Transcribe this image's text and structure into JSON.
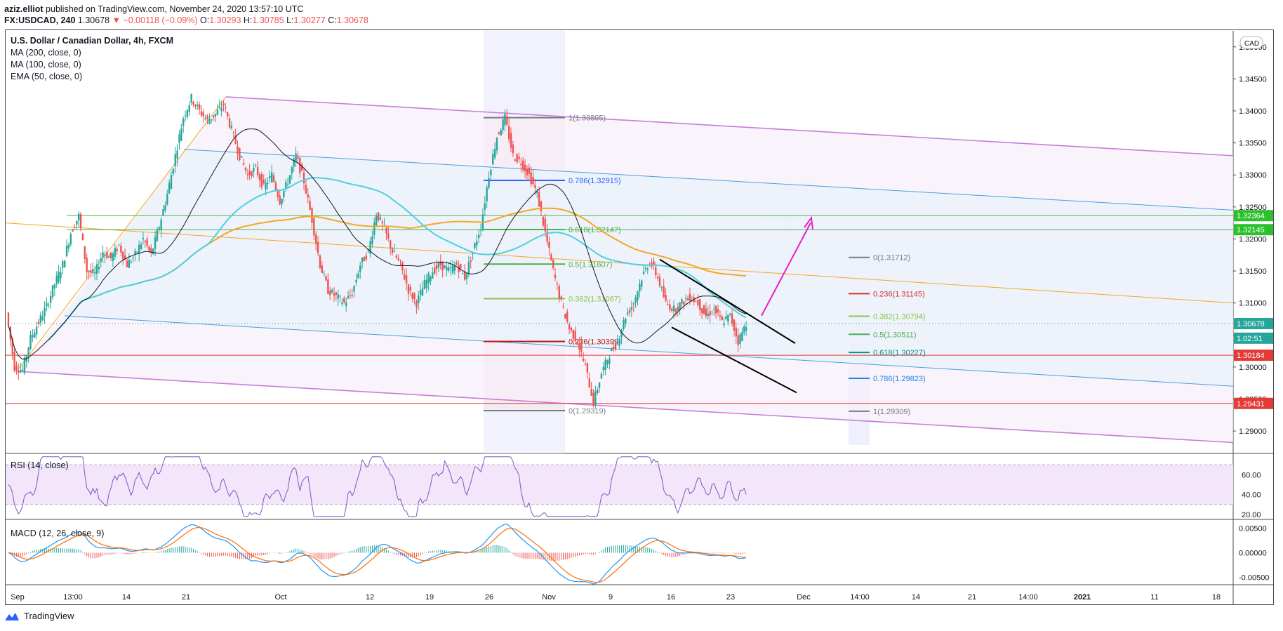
{
  "header": {
    "user": "aziz.elliot",
    "published": " published on TradingView.com, November 24, 2020 13:57:10 UTC",
    "symbol": "FX:USDCAD, 240",
    "last": "1.30678",
    "change": "−0.00118 (−0.09%)",
    "o_label": "O:",
    "o": "1.30293",
    "h_label": "H:",
    "h": "1.30785",
    "l_label": "L:",
    "l": "1.30277",
    "c_label": "C:",
    "c": "1.30678"
  },
  "legend": {
    "title": "U.S. Dollar / Canadian Dollar, 4h, FXCM",
    "ma200": "MA (200, close, 0)",
    "ma100": "MA (100, close, 0)",
    "ema50": "EMA (50, close, 0)",
    "rsi": "RSI (14, close)",
    "macd": "MACD (12, 26, close, 9)"
  },
  "watermark": {
    "symbol": "USDCAD, 4h",
    "name": "U.S. Dollar / Canadian Dollar"
  },
  "currency_button": "CAD",
  "footer": {
    "brand": "TradingView"
  },
  "colors": {
    "up": "#26a69a",
    "down": "#ef5350",
    "ma200": "#f5a623",
    "ma100": "#4dd0e1",
    "ema50": "#131722",
    "channel": "#c77dd8",
    "inner_channel": "#4a9fe0",
    "horizontal": "#e53935",
    "green_line": "#4caf50",
    "arrow": "#e91ec8",
    "wedge": "#000000"
  },
  "chart_data": {
    "type": "candlestick",
    "price_axis": {
      "ylim": [
        1.2865,
        1.3525
      ],
      "ticks": [
        "1.29000",
        "1.29500",
        "1.30000",
        "1.30500",
        "1.31000",
        "1.31500",
        "1.32000",
        "1.32500",
        "1.33000",
        "1.33500",
        "1.34000",
        "1.34500",
        "1.35000"
      ]
    },
    "time_axis_ticks": [
      "Sep",
      "13:00",
      "14",
      "21",
      "Oct",
      "12",
      "19",
      "26",
      "Nov",
      "9",
      "16",
      "23",
      "Dec",
      "14:00",
      "14",
      "21",
      "14:00",
      "2021",
      "11",
      "18"
    ],
    "price_labels": [
      {
        "value": "1.32364",
        "price": 1.32364,
        "color": "#2bc12b"
      },
      {
        "value": "1.32145",
        "price": 1.32145,
        "color": "#2bc12b"
      },
      {
        "value": "1.30678",
        "price": 1.30678,
        "color": "#26a69a"
      },
      {
        "value": "1.02:51",
        "price": 1.3045,
        "color": "#26a69a"
      },
      {
        "value": "1.30184",
        "price": 1.30184,
        "color": "#e53935"
      },
      {
        "value": "1.29431",
        "price": 1.29431,
        "color": "#e53935"
      }
    ],
    "fib_retracement_1": [
      {
        "label": "1(1.33895)",
        "level": 1.33895,
        "color": "#787b86"
      },
      {
        "label": "0.786(1.32915)",
        "level": 1.32915,
        "color": "#2962ff"
      },
      {
        "label": "0.618(1.32147)",
        "level": 1.32147,
        "color": "#4caf50"
      },
      {
        "label": "0.5(1.31607)",
        "level": 1.31607,
        "color": "#4caf50"
      },
      {
        "label": "0.382(1.31067)",
        "level": 1.31067,
        "color": "#8bc34a"
      },
      {
        "label": "0.236(1.30399)",
        "level": 1.30399,
        "color": "#b71c1c"
      },
      {
        "label": "0(1.29319)",
        "level": 1.29319,
        "color": "#787b86"
      }
    ],
    "fib_retracement_2": [
      {
        "label": "0(1.31712)",
        "level": 1.31712,
        "color": "#787b86"
      },
      {
        "label": "0.236(1.31145)",
        "level": 1.31145,
        "color": "#d32f2f"
      },
      {
        "label": "0.382(1.30794)",
        "level": 1.30794,
        "color": "#8bc34a"
      },
      {
        "label": "0.5(1.30511)",
        "level": 1.30511,
        "color": "#4caf50"
      },
      {
        "label": "0.618(1.30227)",
        "level": 1.30227,
        "color": "#009688"
      },
      {
        "label": "0.786(1.29823)",
        "level": 1.29823,
        "color": "#1e88e5"
      },
      {
        "label": "1(1.29309)",
        "level": 1.29309,
        "color": "#787b86"
      }
    ],
    "horizontal_levels": [
      1.32364,
      1.32145,
      1.30184,
      1.29431
    ],
    "price_path": [
      1.3085,
      1.3,
      1.2995,
      1.3045,
      1.307,
      1.3095,
      1.313,
      1.316,
      1.321,
      1.3236,
      1.315,
      1.3145,
      1.318,
      1.317,
      1.319,
      1.316,
      1.3175,
      1.32,
      1.3175,
      1.322,
      1.327,
      1.333,
      1.339,
      1.342,
      1.34,
      1.3385,
      1.3395,
      1.341,
      1.337,
      1.333,
      1.33,
      1.331,
      1.328,
      1.33,
      1.326,
      1.329,
      1.333,
      1.329,
      1.323,
      1.316,
      1.312,
      1.311,
      1.31,
      1.3115,
      1.316,
      1.318,
      1.324,
      1.3215,
      1.318,
      1.316,
      1.312,
      1.31,
      1.313,
      1.315,
      1.316,
      1.315,
      1.316,
      1.314,
      1.318,
      1.322,
      1.33,
      1.336,
      1.3389,
      1.333,
      1.332,
      1.33,
      1.327,
      1.321,
      1.315,
      1.31,
      1.306,
      1.304,
      1.3,
      1.2945,
      1.299,
      1.302,
      1.304,
      1.308,
      1.31,
      1.314,
      1.3165,
      1.314,
      1.31,
      1.309,
      1.31,
      1.311,
      1.31,
      1.308,
      1.309,
      1.307,
      1.308,
      1.304,
      1.3068
    ],
    "rsi_levels": [
      20.0,
      40.0,
      60.0
    ],
    "rsi_ylim": [
      15,
      80
    ],
    "rsi_band": [
      30,
      70
    ],
    "macd_ticks": [
      "0.00500",
      "0.00000",
      "-0.00500"
    ],
    "macd_ylim": [
      -0.0065,
      0.0065
    ]
  }
}
